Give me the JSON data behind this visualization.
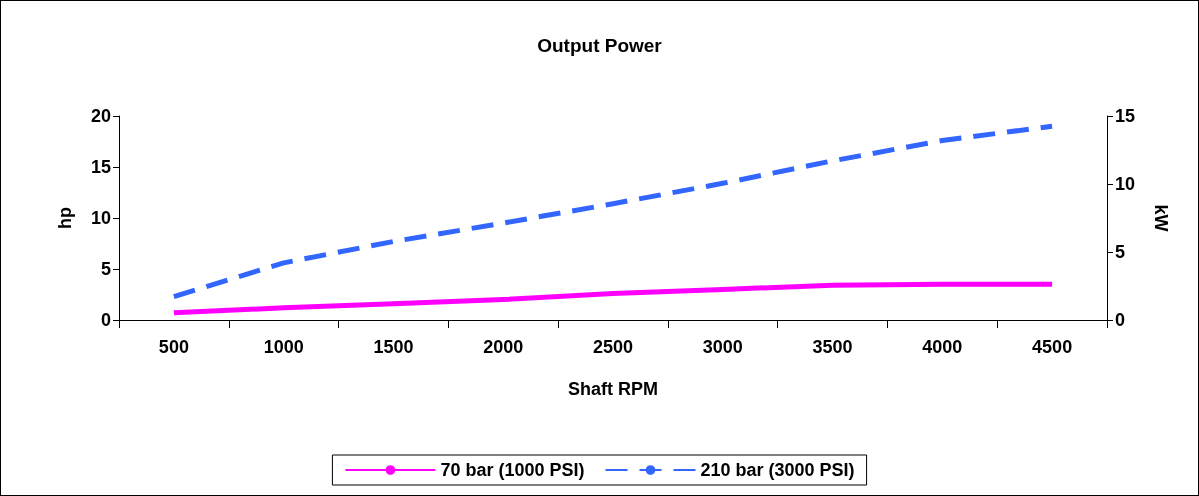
{
  "chart_data": {
    "type": "line",
    "title": "Output Power",
    "xlabel": "Shaft RPM",
    "ylabel": "hp",
    "y2label": "kW",
    "categories": [
      "500",
      "1000",
      "1500",
      "2000",
      "2500",
      "3000",
      "3500",
      "4000",
      "4500"
    ],
    "series": [
      {
        "name": "70 bar (1000 PSI)",
        "color": "#ff00ff",
        "line_style": "solid",
        "values": [
          0.7,
          1.2,
          1.6,
          2.0,
          2.6,
          3.0,
          3.4,
          3.5,
          3.5
        ]
      },
      {
        "name": "210 bar (3000 PSI)",
        "color": "#3366ff",
        "line_style": "dashed",
        "values": [
          2.3,
          5.6,
          7.7,
          9.5,
          11.4,
          13.4,
          15.6,
          17.6,
          19.0
        ]
      }
    ],
    "ylim": [
      0,
      20
    ],
    "yticks": [
      0,
      5,
      10,
      15,
      20
    ],
    "y2lim": [
      0,
      15
    ],
    "y2ticks": [
      0,
      5,
      10,
      15
    ],
    "grid": false,
    "legend": "bottom",
    "marker": "none"
  }
}
